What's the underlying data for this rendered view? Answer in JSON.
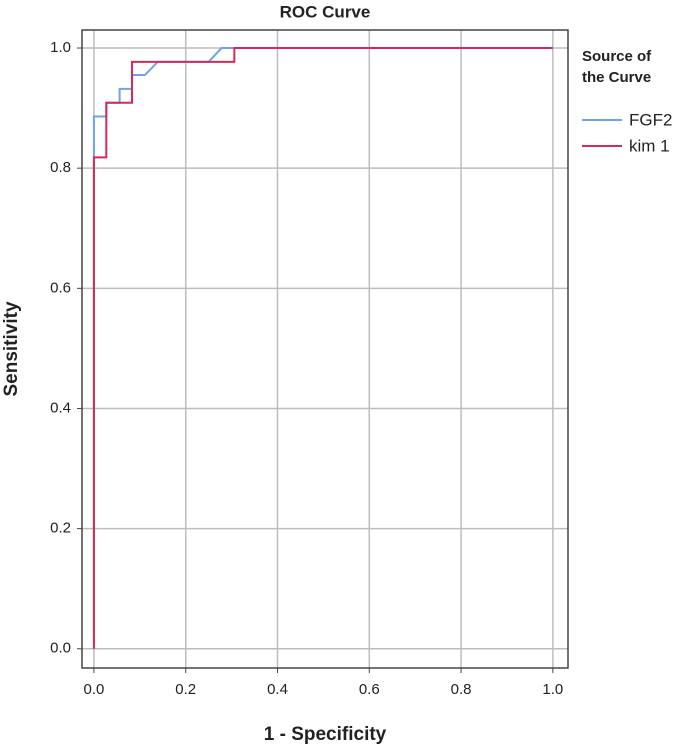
{
  "chart_data": {
    "type": "line",
    "title": "ROC Curve",
    "x_label": "1 - Specificity",
    "y_label": "Sensitivity",
    "legend_title": [
      "Source of",
      "the Curve"
    ],
    "legend_position": "right",
    "xlim": [
      -0.026,
      1.033
    ],
    "ylim": [
      -0.032,
      1.03
    ],
    "xticks": [
      {
        "value": 0,
        "label": "0.0"
      },
      0.2,
      0.4,
      0.6,
      0.8,
      {
        "value": 1,
        "label": "1.0"
      }
    ],
    "yticks": [
      {
        "value": 0,
        "label": "0.0"
      },
      0.2,
      0.4,
      0.6,
      0.8,
      {
        "value": 1,
        "label": "1.0"
      }
    ],
    "grid": true,
    "series": [
      {
        "name": "FGF2",
        "color": "#6ea3e8",
        "x": [
          0,
          0,
          0,
          0.027,
          0.027,
          0.056,
          0.056,
          0.083,
          0.083,
          0.111,
          0.139,
          0.25,
          0.278,
          1
        ],
        "values": [
          0,
          0.818,
          0.886,
          0.886,
          0.909,
          0.909,
          0.932,
          0.932,
          0.955,
          0.955,
          0.977,
          0.977,
          1,
          1
        ]
      },
      {
        "name": "kim 1",
        "color": "#d42a55",
        "x": [
          0,
          0,
          0.027,
          0.027,
          0.083,
          0.083,
          0.306,
          0.306,
          1
        ],
        "values": [
          0,
          0.818,
          0.818,
          0.909,
          0.909,
          0.977,
          0.977,
          1,
          1
        ]
      }
    ]
  }
}
